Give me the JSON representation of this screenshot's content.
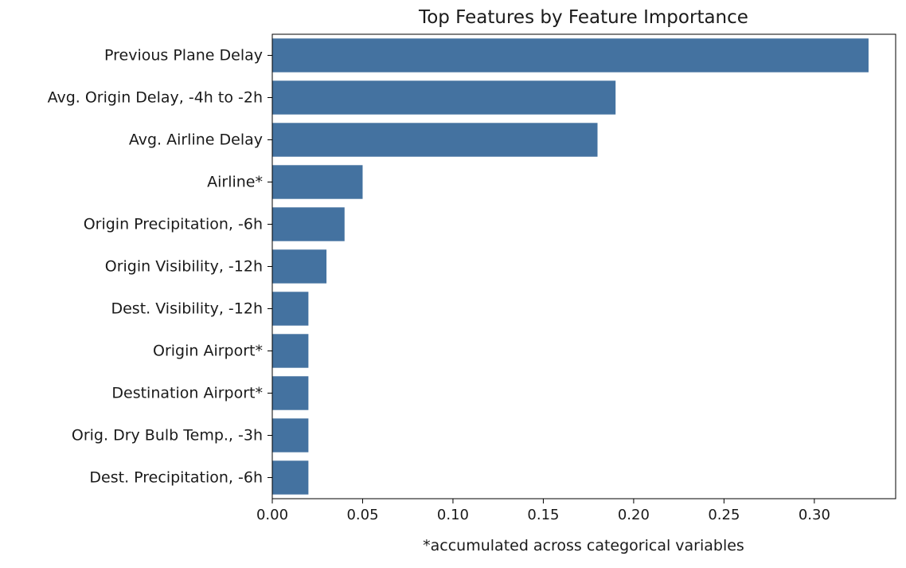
{
  "chart_data": {
    "type": "bar",
    "orientation": "horizontal",
    "title": "Top Features by Feature Importance",
    "xlabel": "*accumulated across categorical variables",
    "ylabel": "",
    "categories": [
      "Previous Plane Delay",
      "Avg. Origin Delay, -4h to -2h",
      "Avg. Airline Delay",
      "Airline*",
      "Origin Precipitation, -6h",
      "Origin Visibility, -12h",
      "Dest. Visibility, -12h",
      "Origin Airport*",
      "Destination Airport*",
      "Orig. Dry Bulb Temp., -3h",
      "Dest. Precipitation, -6h"
    ],
    "values": [
      0.33,
      0.19,
      0.18,
      0.05,
      0.04,
      0.03,
      0.02,
      0.02,
      0.02,
      0.02,
      0.02
    ],
    "xlim": [
      0.0,
      0.345
    ],
    "xticks": [
      0.0,
      0.05,
      0.1,
      0.15,
      0.2,
      0.25,
      0.3
    ],
    "xtick_labels": [
      "0.00",
      "0.05",
      "0.10",
      "0.15",
      "0.20",
      "0.25",
      "0.30"
    ],
    "grid": false,
    "legend": "none",
    "bar_color": "#4472a0"
  }
}
